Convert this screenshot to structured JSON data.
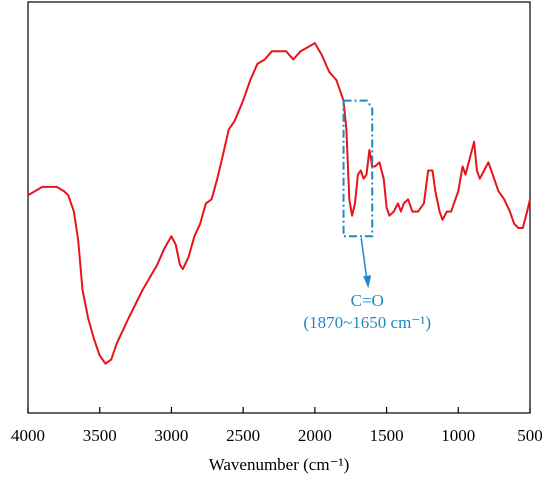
{
  "chart_data": {
    "type": "line",
    "x_label": "Wavenumber (cm⁻¹)",
    "xlim": [
      4000,
      500
    ],
    "ylim": [
      0,
      100
    ],
    "xticks": [
      4000,
      3500,
      3000,
      2500,
      2000,
      1500,
      1000,
      500
    ],
    "series": [
      {
        "color": "#e8141c",
        "x": [
          4000,
          3900,
          3800,
          3750,
          3720,
          3680,
          3650,
          3620,
          3580,
          3540,
          3500,
          3460,
          3420,
          3380,
          3300,
          3200,
          3100,
          3050,
          3000,
          2970,
          2940,
          2920,
          2880,
          2840,
          2800,
          2760,
          2720,
          2680,
          2640,
          2600,
          2560,
          2500,
          2450,
          2400,
          2350,
          2300,
          2250,
          2200,
          2150,
          2100,
          2050,
          2000,
          1950,
          1900,
          1850,
          1800,
          1780,
          1760,
          1740,
          1720,
          1700,
          1680,
          1660,
          1640,
          1620,
          1600,
          1580,
          1550,
          1520,
          1500,
          1480,
          1450,
          1420,
          1400,
          1380,
          1350,
          1320,
          1280,
          1240,
          1210,
          1180,
          1160,
          1130,
          1110,
          1080,
          1050,
          1020,
          1000,
          970,
          950,
          920,
          890,
          870,
          850,
          820,
          790,
          760,
          720,
          680,
          640,
          610,
          580,
          550,
          520,
          500
        ],
        "values": [
          53,
          55,
          55,
          54,
          53,
          49,
          42,
          30,
          23,
          18,
          14,
          12,
          13,
          17,
          23,
          30,
          36,
          40,
          43,
          41,
          36,
          35,
          38,
          43,
          46,
          51,
          52,
          57,
          63,
          69,
          71,
          76,
          81,
          85,
          86,
          88,
          88,
          88,
          86,
          88,
          89,
          90,
          87,
          83,
          81,
          76,
          69,
          52,
          48,
          51,
          58,
          59,
          57,
          58,
          64,
          60,
          60,
          61,
          57,
          50,
          48,
          49,
          51,
          49,
          51,
          52,
          49,
          49,
          51,
          59,
          59,
          54,
          49,
          47,
          49,
          49,
          52,
          54,
          60,
          58,
          62,
          66,
          59,
          57,
          59,
          61,
          58,
          54,
          52,
          49,
          46,
          45,
          45,
          49,
          52
        ]
      }
    ],
    "annotation": {
      "text": "C=O",
      "range_label": "(1870~1650 cm⁻¹)",
      "color": "#1f8ac0",
      "box_x": [
        1800,
        1600
      ],
      "box_y": [
        76,
        43
      ]
    }
  }
}
